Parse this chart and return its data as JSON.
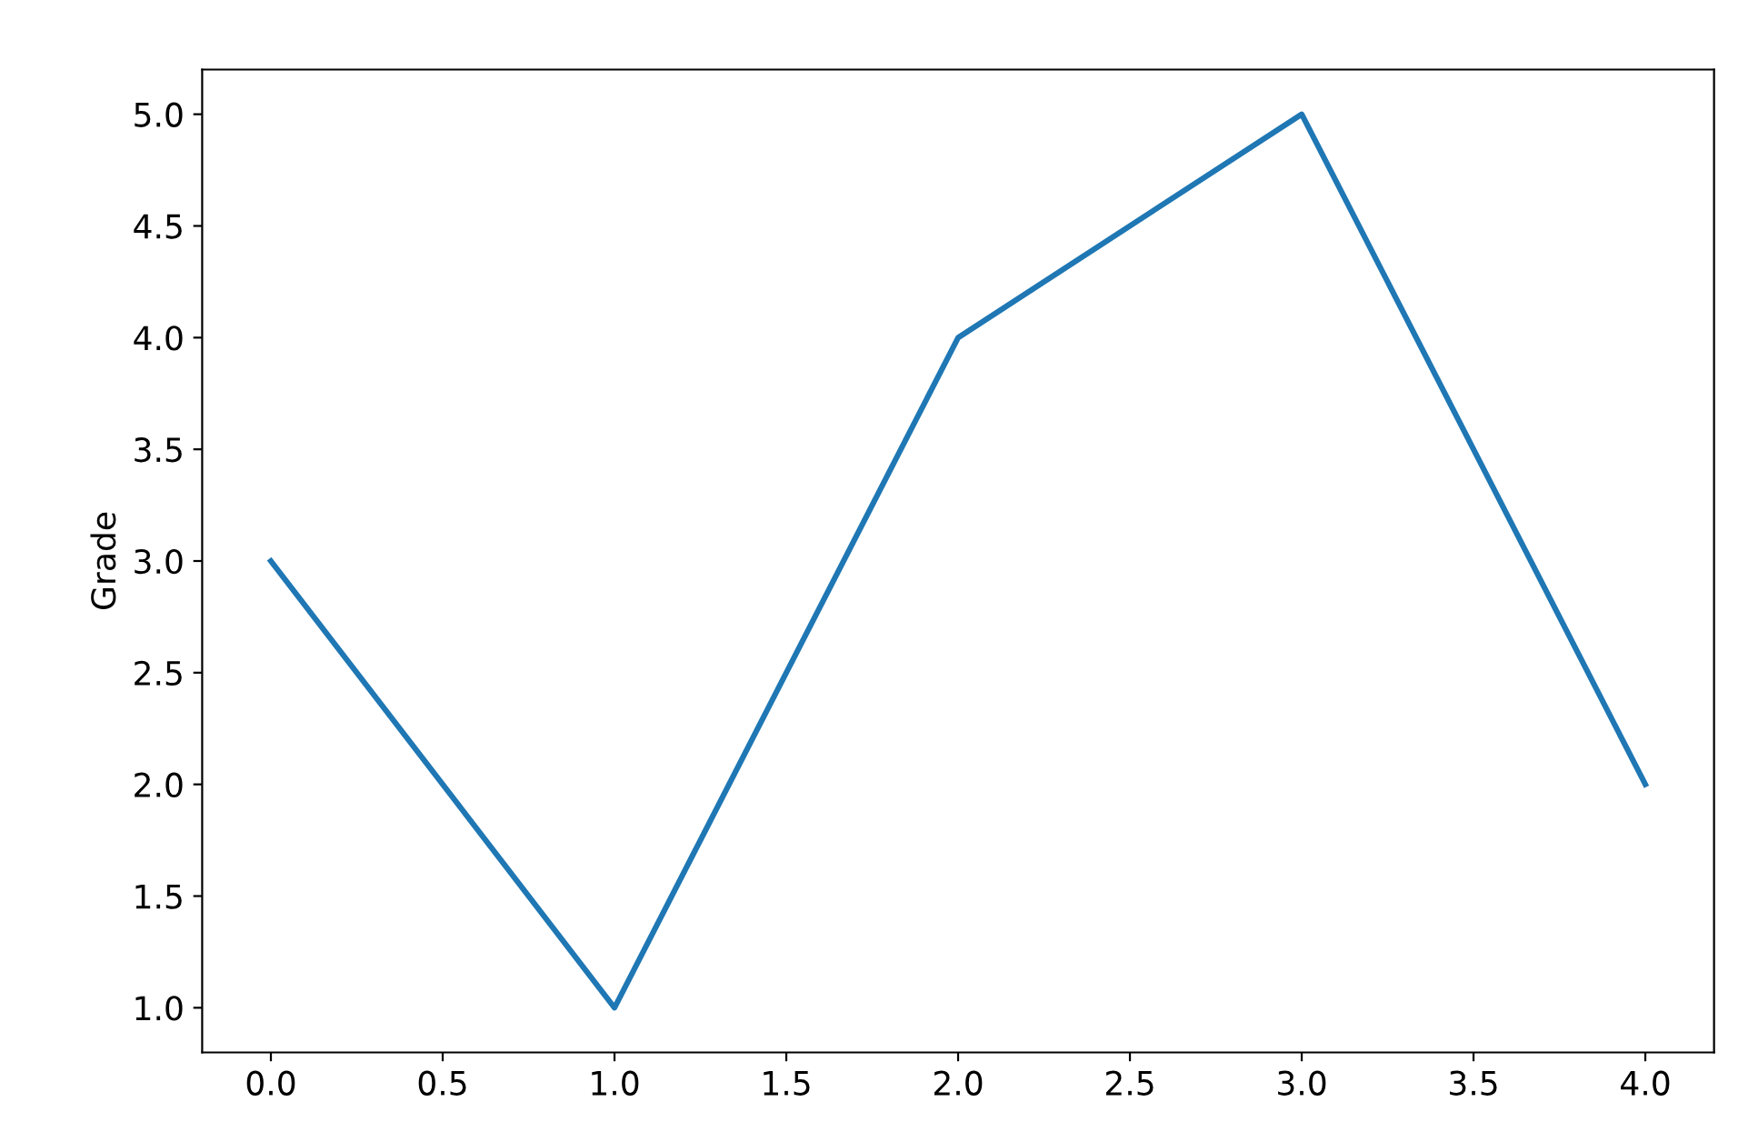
{
  "chart_data": {
    "type": "line",
    "ylabel": "Grade",
    "x": [
      0,
      1,
      2,
      3,
      4
    ],
    "series": [
      {
        "color": "#1f77b4",
        "values": [
          3,
          1,
          4,
          5,
          2
        ]
      }
    ],
    "xlim": [
      -0.2,
      4.2
    ],
    "xticks": [
      {
        "value": 0,
        "label": "0.0"
      },
      {
        "value": 0.5,
        "label": "0.5"
      },
      {
        "value": 1,
        "label": "1.0"
      },
      {
        "value": 1.5,
        "label": "1.5"
      },
      {
        "value": 2,
        "label": "2.0"
      },
      {
        "value": 2.5,
        "label": "2.5"
      },
      {
        "value": 3,
        "label": "3.0"
      },
      {
        "value": 3.5,
        "label": "3.5"
      },
      {
        "value": 4,
        "label": "4.0"
      }
    ],
    "ylim": [
      0.8,
      5.2
    ],
    "yticks": [
      {
        "value": 1,
        "label": "1.0"
      },
      {
        "value": 1.5,
        "label": "1.5"
      },
      {
        "value": 2,
        "label": "2.0"
      },
      {
        "value": 2.5,
        "label": "2.5"
      },
      {
        "value": 3,
        "label": "3.0"
      },
      {
        "value": 3.5,
        "label": "3.5"
      },
      {
        "value": 4,
        "label": "4.0"
      },
      {
        "value": 4.5,
        "label": "4.5"
      },
      {
        "value": 5,
        "label": "5.0"
      }
    ],
    "grid": false
  }
}
